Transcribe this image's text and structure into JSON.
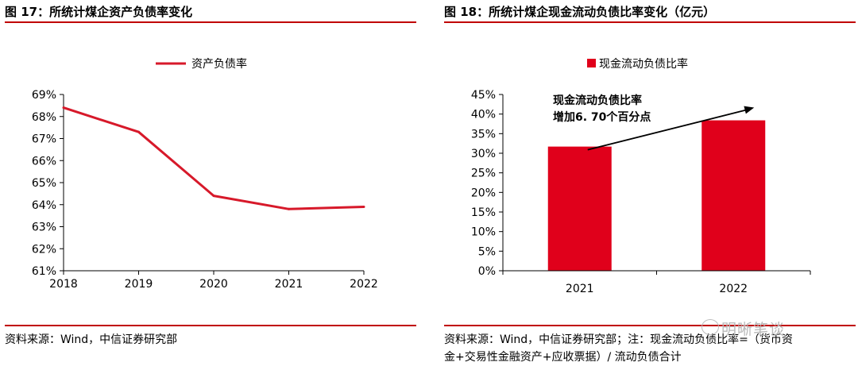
{
  "left": {
    "title": "图 17：所统计煤企资产负债率变化",
    "source": "资料来源：Wind，中信证券研究部",
    "chart_data": {
      "type": "line",
      "x": [
        "2018",
        "2019",
        "2020",
        "2021",
        "2022"
      ],
      "series": [
        {
          "name": "资产负债率",
          "values": [
            68.4,
            67.3,
            64.4,
            63.8,
            63.9
          ]
        }
      ],
      "ylim": [
        61,
        69
      ],
      "yticks": [
        "61%",
        "62%",
        "63%",
        "64%",
        "65%",
        "66%",
        "67%",
        "68%",
        "69%"
      ],
      "color": "#d7192a",
      "legend": "top"
    }
  },
  "right": {
    "title": "图 18：所统计煤企现金流动负债比率变化（亿元）",
    "source_lines": [
      "资料来源：Wind，中信证券研究部；注：现金流动负债比率=（货币资",
      "金+交易性金融资产+应收票据）/ 流动负债合计"
    ],
    "chart_data": {
      "type": "bar",
      "categories": [
        "2021",
        "2022"
      ],
      "series": [
        {
          "name": "现金流动负债比率",
          "values": [
            31.7,
            38.4
          ]
        }
      ],
      "ylim": [
        0,
        45
      ],
      "yticks": [
        "0%",
        "5%",
        "10%",
        "15%",
        "20%",
        "25%",
        "30%",
        "35%",
        "40%",
        "45%"
      ],
      "color": "#e0001b",
      "legend": "top",
      "annotation": [
        "现金流动负债比率",
        "增加6. 70个百分点"
      ]
    }
  },
  "watermark": "明晰笔谈"
}
